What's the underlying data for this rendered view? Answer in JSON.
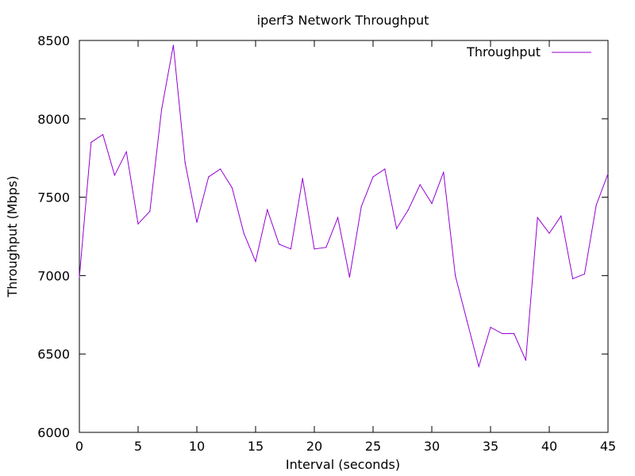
{
  "chart_data": {
    "type": "line",
    "title": "iperf3 Network Throughput",
    "xlabel": "Interval (seconds)",
    "ylabel": "Throughput (Mbps)",
    "xlim": [
      0,
      45
    ],
    "ylim": [
      6000,
      8500
    ],
    "xticks": [
      0,
      5,
      10,
      15,
      20,
      25,
      30,
      35,
      40,
      45
    ],
    "yticks": [
      6000,
      6500,
      7000,
      7500,
      8000,
      8500
    ],
    "grid": false,
    "legend_position": "top-right",
    "series": [
      {
        "name": "Throughput",
        "color": "#9400d3",
        "x": [
          0,
          1,
          2,
          3,
          4,
          5,
          6,
          7,
          8,
          9,
          10,
          11,
          12,
          13,
          14,
          15,
          16,
          17,
          18,
          19,
          20,
          21,
          22,
          23,
          24,
          25,
          26,
          27,
          28,
          29,
          30,
          31,
          32,
          33,
          34,
          35,
          36,
          37,
          38,
          39,
          40,
          41,
          42,
          43,
          44,
          45
        ],
        "y": [
          6990,
          7850,
          7900,
          7640,
          7790,
          7330,
          7410,
          8060,
          8470,
          7720,
          7340,
          7630,
          7680,
          7560,
          7270,
          7090,
          7420,
          7200,
          7170,
          7620,
          7170,
          7180,
          7370,
          6990,
          7440,
          7630,
          7680,
          7300,
          7420,
          7580,
          7460,
          7660,
          7000,
          6710,
          6420,
          6670,
          6630,
          6630,
          6460,
          7370,
          7270,
          7380,
          6980,
          7010,
          7450,
          7650
        ]
      }
    ]
  }
}
